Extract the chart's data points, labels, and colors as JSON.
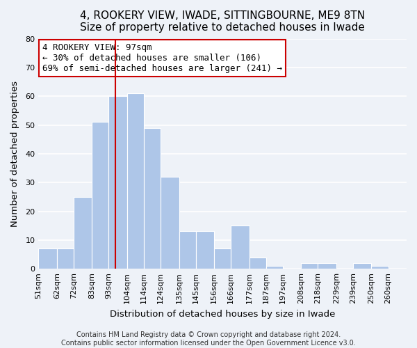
{
  "title": "4, ROOKERY VIEW, IWADE, SITTINGBOURNE, ME9 8TN",
  "subtitle": "Size of property relative to detached houses in Iwade",
  "xlabel": "Distribution of detached houses by size in Iwade",
  "ylabel": "Number of detached properties",
  "bin_labels": [
    "51sqm",
    "62sqm",
    "72sqm",
    "83sqm",
    "93sqm",
    "104sqm",
    "114sqm",
    "124sqm",
    "135sqm",
    "145sqm",
    "156sqm",
    "166sqm",
    "177sqm",
    "187sqm",
    "197sqm",
    "208sqm",
    "218sqm",
    "229sqm",
    "239sqm",
    "250sqm",
    "260sqm"
  ],
  "bin_edges": [
    51,
    62,
    72,
    83,
    93,
    104,
    114,
    124,
    135,
    145,
    156,
    166,
    177,
    187,
    197,
    208,
    218,
    229,
    239,
    250,
    260,
    271
  ],
  "counts": [
    7,
    7,
    25,
    51,
    60,
    61,
    49,
    32,
    13,
    13,
    7,
    15,
    4,
    1,
    0,
    2,
    2,
    0,
    2,
    1,
    0
  ],
  "bar_color": "#aec6e8",
  "bar_edge_color": "#ffffff",
  "bar_linewidth": 0.8,
  "vline_x": 97,
  "vline_color": "#cc0000",
  "ylim": [
    0,
    80
  ],
  "yticks": [
    0,
    10,
    20,
    30,
    40,
    50,
    60,
    70,
    80
  ],
  "annotation_title": "4 ROOKERY VIEW: 97sqm",
  "annotation_line1": "← 30% of detached houses are smaller (106)",
  "annotation_line2": "69% of semi-detached houses are larger (241) →",
  "annotation_box_color": "#ffffff",
  "annotation_box_edgecolor": "#cc0000",
  "footer_line1": "Contains HM Land Registry data © Crown copyright and database right 2024.",
  "footer_line2": "Contains public sector information licensed under the Open Government Licence v3.0.",
  "title_fontsize": 11,
  "axis_label_fontsize": 9.5,
  "tick_fontsize": 8,
  "annotation_fontsize": 9,
  "footer_fontsize": 7,
  "background_color": "#eef2f8",
  "plot_background_color": "#eef2f8",
  "grid_color": "#ffffff",
  "grid_linewidth": 1.2
}
